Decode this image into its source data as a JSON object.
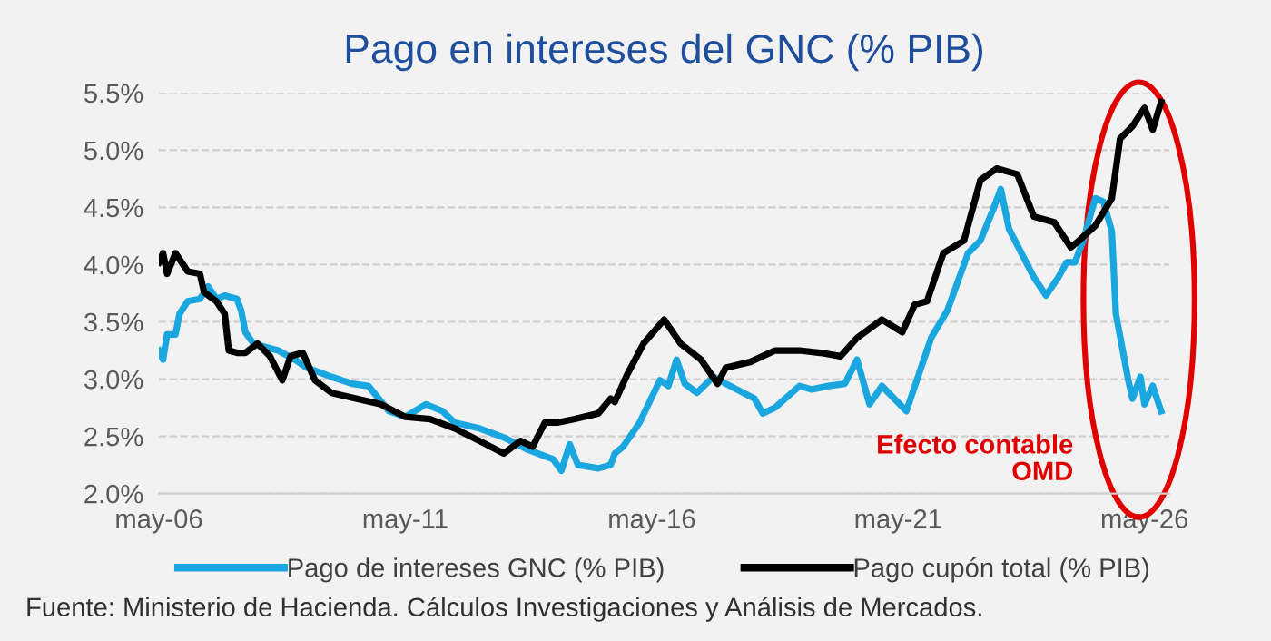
{
  "chart_data": {
    "type": "line",
    "title": "Pago en intereses del GNC (% PIB)",
    "xlim": [
      "2006-05",
      "2026-11"
    ],
    "xticks": [
      {
        "value": "2006-05",
        "label": "may-06"
      },
      {
        "value": "2011-05",
        "label": "may-11"
      },
      {
        "value": "2016-05",
        "label": "may-16"
      },
      {
        "value": "2021-05",
        "label": "may-21"
      },
      {
        "value": "2026-05",
        "label": "may-26"
      }
    ],
    "ylim": [
      2.0,
      5.5
    ],
    "yticks": [
      {
        "value": 2.0,
        "label": "2.0%"
      },
      {
        "value": 2.5,
        "label": "2.5%"
      },
      {
        "value": 3.0,
        "label": "3.0%"
      },
      {
        "value": 3.5,
        "label": "3.5%"
      },
      {
        "value": 4.0,
        "label": "4.0%"
      },
      {
        "value": 4.5,
        "label": "4.5%"
      },
      {
        "value": 5.0,
        "label": "5.0%"
      },
      {
        "value": 5.5,
        "label": "5.5%"
      }
    ],
    "grid": "y",
    "legend": "bottom",
    "line_style": "solid",
    "marker": "none",
    "series": [
      {
        "name": "Pago de intereses GNC (% PIB)",
        "color": "#1aa7e0",
        "x": [
          "2006-05",
          "2006-06",
          "2006-07",
          "2006-09",
          "2006-10",
          "2006-12",
          "2007-03",
          "2007-05",
          "2007-07",
          "2007-09",
          "2007-12",
          "2008-01",
          "2008-02",
          "2008-04",
          "2008-07",
          "2008-10",
          "2009-02",
          "2009-05",
          "2009-11",
          "2010-04",
          "2010-08",
          "2011-01",
          "2011-05",
          "2011-10",
          "2012-02",
          "2012-05",
          "2012-11",
          "2013-05",
          "2013-11",
          "2014-05",
          "2014-07",
          "2014-09",
          "2014-11",
          "2015-04",
          "2015-07",
          "2015-08",
          "2015-10",
          "2016-02",
          "2016-07",
          "2016-09",
          "2016-11",
          "2017-01",
          "2017-04",
          "2017-08",
          "2017-11",
          "2018-06",
          "2018-08",
          "2018-11",
          "2019-05",
          "2019-08",
          "2019-12",
          "2020-04",
          "2020-07",
          "2020-10",
          "2021-01",
          "2021-07",
          "2021-10",
          "2022-01",
          "2022-05",
          "2022-10",
          "2023-01",
          "2023-04",
          "2023-06",
          "2023-08",
          "2023-11",
          "2024-02",
          "2024-05",
          "2024-08",
          "2024-10",
          "2024-12",
          "2025-02",
          "2025-05",
          "2025-07",
          "2025-09",
          "2025-10",
          "2026-01",
          "2026-02",
          "2026-04",
          "2026-05",
          "2026-07",
          "2026-09"
        ],
        "values": [
          3.25,
          3.17,
          3.39,
          3.39,
          3.57,
          3.68,
          3.7,
          3.81,
          3.7,
          3.73,
          3.7,
          3.6,
          3.41,
          3.31,
          3.28,
          3.25,
          3.17,
          3.1,
          3.02,
          2.96,
          2.94,
          2.72,
          2.67,
          2.78,
          2.72,
          2.62,
          2.57,
          2.49,
          2.38,
          2.3,
          2.2,
          2.43,
          2.25,
          2.22,
          2.25,
          2.35,
          2.41,
          2.62,
          2.99,
          2.94,
          3.17,
          2.96,
          2.88,
          3.02,
          2.96,
          2.83,
          2.7,
          2.75,
          2.94,
          2.91,
          2.94,
          2.96,
          3.17,
          2.78,
          2.94,
          2.72,
          3.04,
          3.36,
          3.6,
          4.1,
          4.21,
          4.47,
          4.66,
          4.31,
          4.1,
          3.89,
          3.73,
          3.89,
          4.02,
          4.02,
          4.21,
          4.58,
          4.55,
          4.29,
          3.57,
          2.99,
          2.83,
          3.02,
          2.78,
          2.94,
          2.72
        ]
      },
      {
        "name": "Pago cupón total (% PIB)",
        "color": "#000000",
        "x": [
          "2006-05",
          "2006-06",
          "2006-07",
          "2006-09",
          "2006-12",
          "2007-03",
          "2007-04",
          "2007-07",
          "2007-09",
          "2007-10",
          "2007-12",
          "2008-02",
          "2008-05",
          "2008-08",
          "2008-11",
          "2009-01",
          "2009-04",
          "2009-07",
          "2009-11",
          "2010-05",
          "2010-11",
          "2011-05",
          "2011-11",
          "2012-05",
          "2012-11",
          "2013-05",
          "2013-09",
          "2013-12",
          "2014-03",
          "2014-06",
          "2014-10",
          "2015-04",
          "2015-07",
          "2015-08",
          "2015-11",
          "2016-03",
          "2016-08",
          "2016-12",
          "2017-05",
          "2017-09",
          "2017-11",
          "2018-05",
          "2018-11",
          "2019-05",
          "2019-10",
          "2020-03",
          "2020-07",
          "2021-01",
          "2021-06",
          "2021-09",
          "2021-12",
          "2022-04",
          "2022-09",
          "2023-01",
          "2023-05",
          "2023-10",
          "2024-02",
          "2024-07",
          "2024-11",
          "2025-01",
          "2025-05",
          "2025-09",
          "2025-11",
          "2026-02",
          "2026-05",
          "2026-07",
          "2026-09"
        ],
        "values": [
          4.02,
          4.1,
          3.92,
          4.1,
          3.94,
          3.92,
          3.76,
          3.68,
          3.57,
          3.25,
          3.23,
          3.23,
          3.31,
          3.2,
          2.99,
          3.2,
          3.23,
          2.99,
          2.88,
          2.83,
          2.78,
          2.67,
          2.65,
          2.57,
          2.46,
          2.35,
          2.46,
          2.41,
          2.62,
          2.62,
          2.65,
          2.7,
          2.83,
          2.8,
          3.04,
          3.31,
          3.52,
          3.31,
          3.17,
          2.96,
          3.1,
          3.15,
          3.25,
          3.25,
          3.23,
          3.2,
          3.36,
          3.52,
          3.41,
          3.65,
          3.68,
          4.1,
          4.21,
          4.74,
          4.84,
          4.79,
          4.42,
          4.37,
          4.15,
          4.21,
          4.34,
          4.58,
          5.1,
          5.21,
          5.37,
          5.18,
          5.42
        ]
      }
    ],
    "annotations": [
      "Efecto contable\nOMD",
      "Fuente: Ministerio de Hacienda. Cálculos Investigaciones y Análisis de Mercados."
    ]
  }
}
